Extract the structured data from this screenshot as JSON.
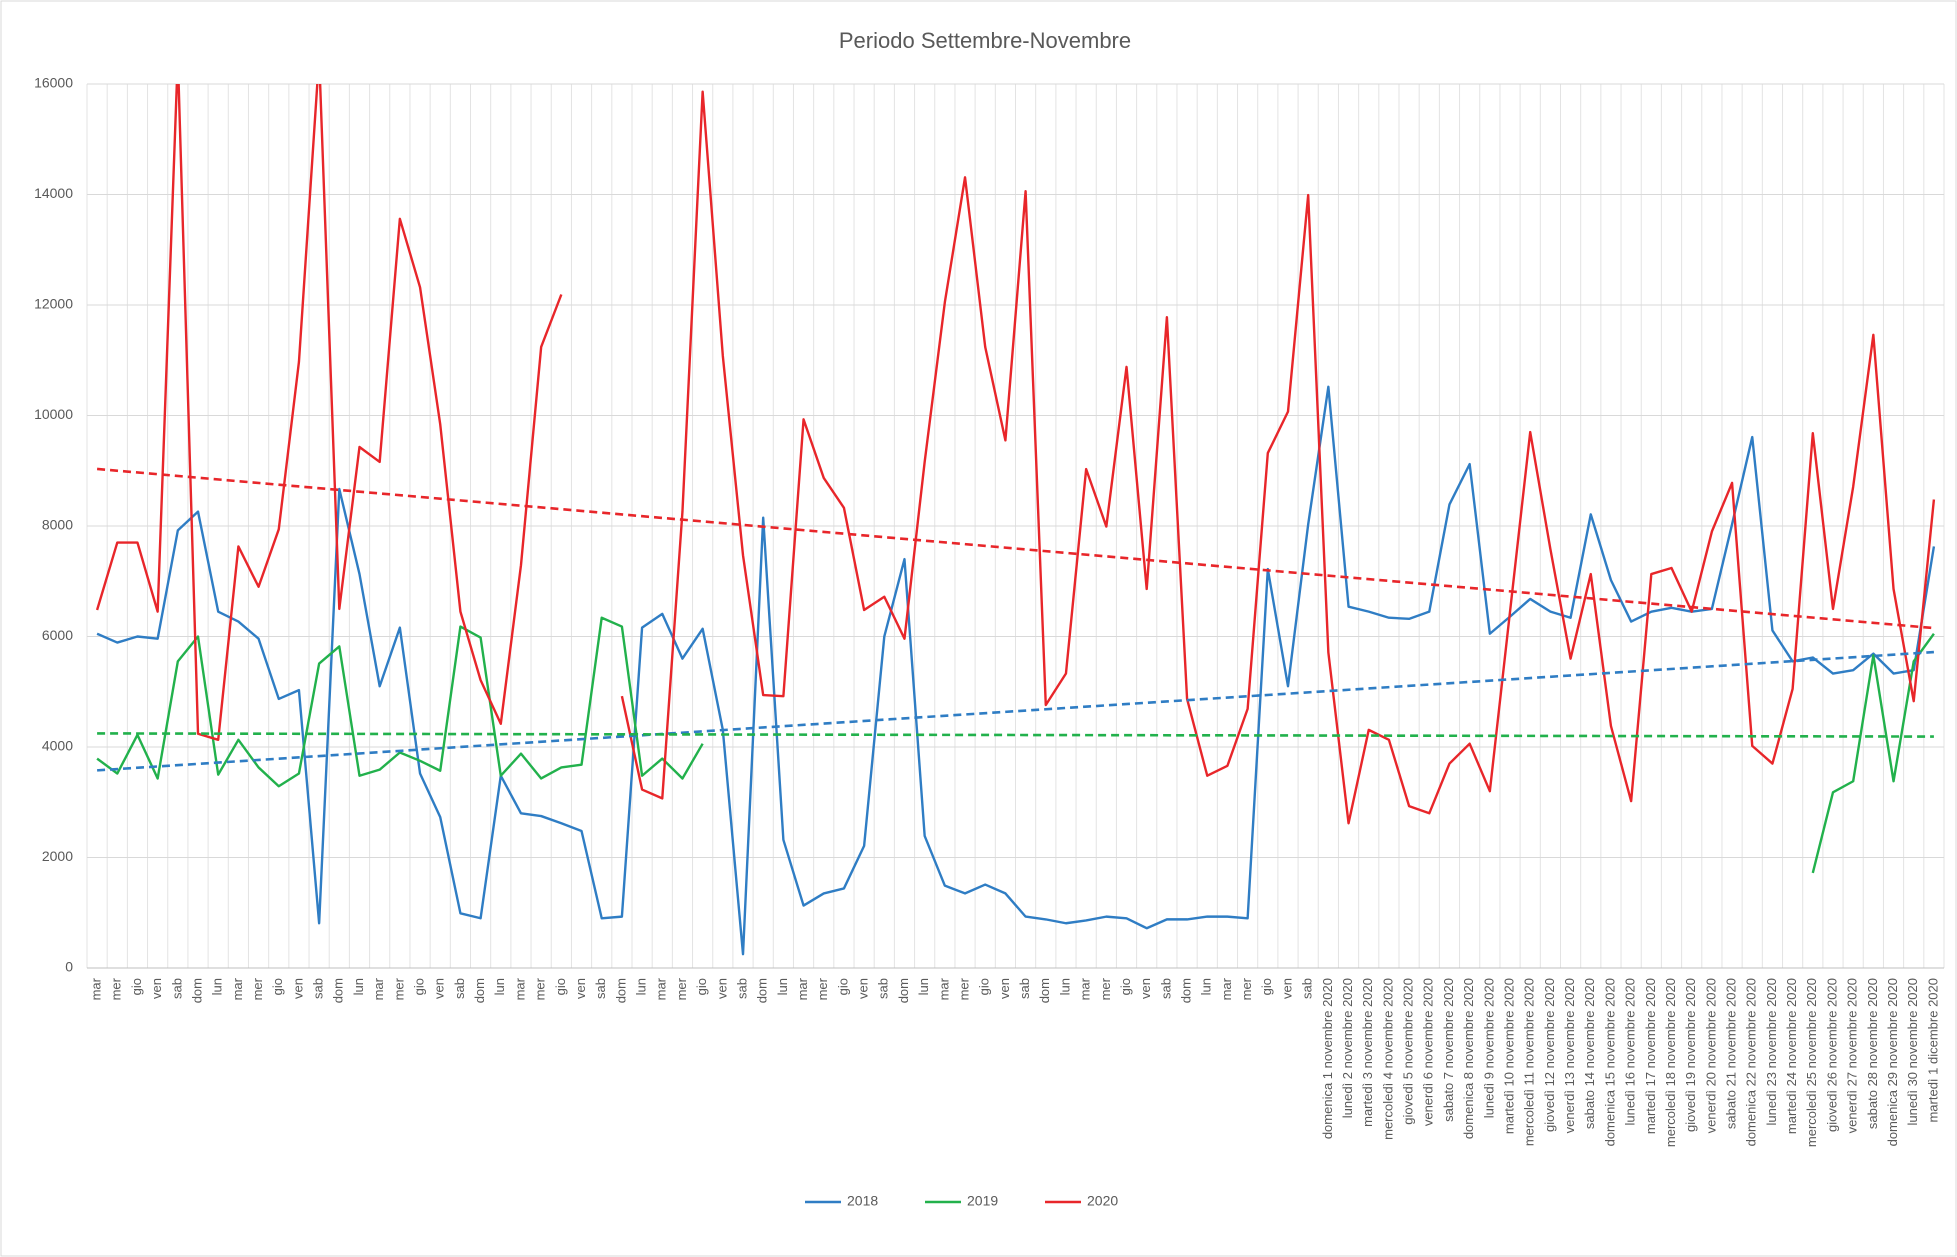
{
  "chart_data": {
    "type": "line",
    "title": "Periodo Settembre-Novembre",
    "categories": [
      "mar",
      "mer",
      "gio",
      "ven",
      "sab",
      "dom",
      "lun",
      "mar",
      "mer",
      "gio",
      "ven",
      "sab",
      "dom",
      "lun",
      "mar",
      "mer",
      "gio",
      "ven",
      "sab",
      "dom",
      "lun",
      "mar",
      "mer",
      "gio",
      "ven",
      "sab",
      "dom",
      "lun",
      "mar",
      "mer",
      "gio",
      "ven",
      "sab",
      "dom",
      "lun",
      "mar",
      "mer",
      "gio",
      "ven",
      "sab",
      "dom",
      "lun",
      "mar",
      "mer",
      "gio",
      "ven",
      "sab",
      "dom",
      "lun",
      "mar",
      "mer",
      "gio",
      "ven",
      "sab",
      "dom",
      "lun",
      "mar",
      "mer",
      "gio",
      "ven",
      "sab",
      "domenica 1 novembre 2020",
      "lunedì 2 novembre 2020",
      "martedì 3 novembre 2020",
      "mercoledì 4 novembre 2020",
      "giovedì 5 novembre 2020",
      "venerdì 6 novembre 2020",
      "sabato 7 novembre 2020",
      "domenica 8 novembre 2020",
      "lunedì 9 novembre 2020",
      "martedì 10 novembre 2020",
      "mercoledì 11 novembre 2020",
      "giovedì 12 novembre 2020",
      "venerdì 13 novembre 2020",
      "sabato 14 novembre 2020",
      "domenica 15 novembre 2020",
      "lunedì 16 novembre 2020",
      "martedì 17 novembre 2020",
      "mercoledì 18 novembre 2020",
      "giovedì 19 novembre 2020",
      "venerdì 20 novembre 2020",
      "sabato 21 novembre 2020",
      "domenica 22 novembre 2020",
      "lunedì 23 novembre 2020",
      "martedì 24 novembre 2020",
      "mercoledì 25 novembre 2020",
      "giovedì 26 novembre 2020",
      "venerdì 27 novembre 2020",
      "sabato 28 novembre 2020",
      "domenica 29 novembre 2020",
      "lunedì 30 novembre 2020",
      "martedì 1 dicembre 2020"
    ],
    "series": [
      {
        "name": "2018",
        "color": "#2f7dc4",
        "values": [
          6050,
          5890,
          6000,
          5960,
          7920,
          8260,
          6450,
          6270,
          5960,
          4870,
          5030,
          810,
          8670,
          7130,
          5100,
          6160,
          3520,
          2730,
          990,
          900,
          3480,
          2800,
          2750,
          2620,
          2480,
          900,
          930,
          6160,
          6410,
          5600,
          6140,
          4310,
          250,
          8150,
          2320,
          1130,
          1350,
          1440,
          2210,
          6000,
          7400,
          2390,
          1490,
          1350,
          1510,
          1350,
          930,
          880,
          810,
          860,
          930,
          900,
          720,
          880,
          880,
          930,
          930,
          900,
          7220,
          5100,
          8030,
          10520,
          6540,
          6450,
          6340,
          6320,
          6450,
          8390,
          9120,
          6050,
          6360,
          6680,
          6450,
          6340,
          8210,
          7020,
          6270,
          6450,
          6520,
          6450,
          6500,
          8030,
          9610,
          6110,
          5550,
          5620,
          5330,
          5390,
          5690,
          5330,
          5390,
          7630
        ]
      },
      {
        "name": "2019",
        "color": "#22b14c",
        "values": [
          3790,
          3520,
          4220,
          3430,
          5550,
          6000,
          3500,
          4130,
          3630,
          3290,
          3520,
          5510,
          5820,
          3480,
          3590,
          3900,
          3750,
          3570,
          6180,
          5980,
          3480,
          3880,
          3430,
          3630,
          3680,
          6340,
          6180,
          3480,
          3790,
          3430,
          4060,
          null,
          null,
          null,
          null,
          null,
          null,
          null,
          null,
          null,
          null,
          null,
          null,
          null,
          null,
          null,
          null,
          null,
          null,
          null,
          null,
          null,
          null,
          null,
          null,
          null,
          null,
          null,
          null,
          null,
          null,
          null,
          null,
          null,
          null,
          null,
          null,
          null,
          null,
          null,
          null,
          null,
          null,
          null,
          null,
          null,
          null,
          null,
          null,
          null,
          null,
          null,
          null,
          null,
          null,
          1720,
          3180,
          3380,
          5660,
          3380,
          5550,
          6050
        ]
      },
      {
        "name": "2020",
        "color": "#e8262a",
        "values": [
          6480,
          7700,
          7700,
          6450,
          16500,
          4240,
          4130,
          7630,
          6900,
          7940,
          10970,
          16500,
          6500,
          9430,
          9160,
          13560,
          12320,
          9840,
          6450,
          5210,
          4420,
          7290,
          11240,
          12190,
          null,
          null,
          4920,
          3230,
          3070,
          8260,
          15860,
          11080,
          7470,
          4940,
          4920,
          9930,
          8870,
          8330,
          6480,
          6720,
          5960,
          9160,
          12050,
          14310,
          11240,
          9550,
          14060,
          4760,
          5330,
          9030,
          7990,
          10880,
          6860,
          11780,
          4870,
          3480,
          3660,
          4690,
          9320,
          10070,
          13990,
          5710,
          2620,
          4310,
          4130,
          2930,
          2800,
          3700,
          4060,
          3200,
          6450,
          9700,
          7580,
          5600,
          7130,
          4380,
          3020,
          7130,
          7240,
          6450,
          7900,
          8780,
          4020,
          3700,
          5050,
          9680,
          6500,
          8710,
          11460,
          6860,
          4830,
          8480
        ]
      }
    ],
    "ylim": [
      0,
      16000
    ],
    "yticks": [
      0,
      2000,
      4000,
      6000,
      8000,
      10000,
      12000,
      14000,
      16000
    ],
    "grid": true,
    "trendline": true,
    "legend": "bottom"
  }
}
